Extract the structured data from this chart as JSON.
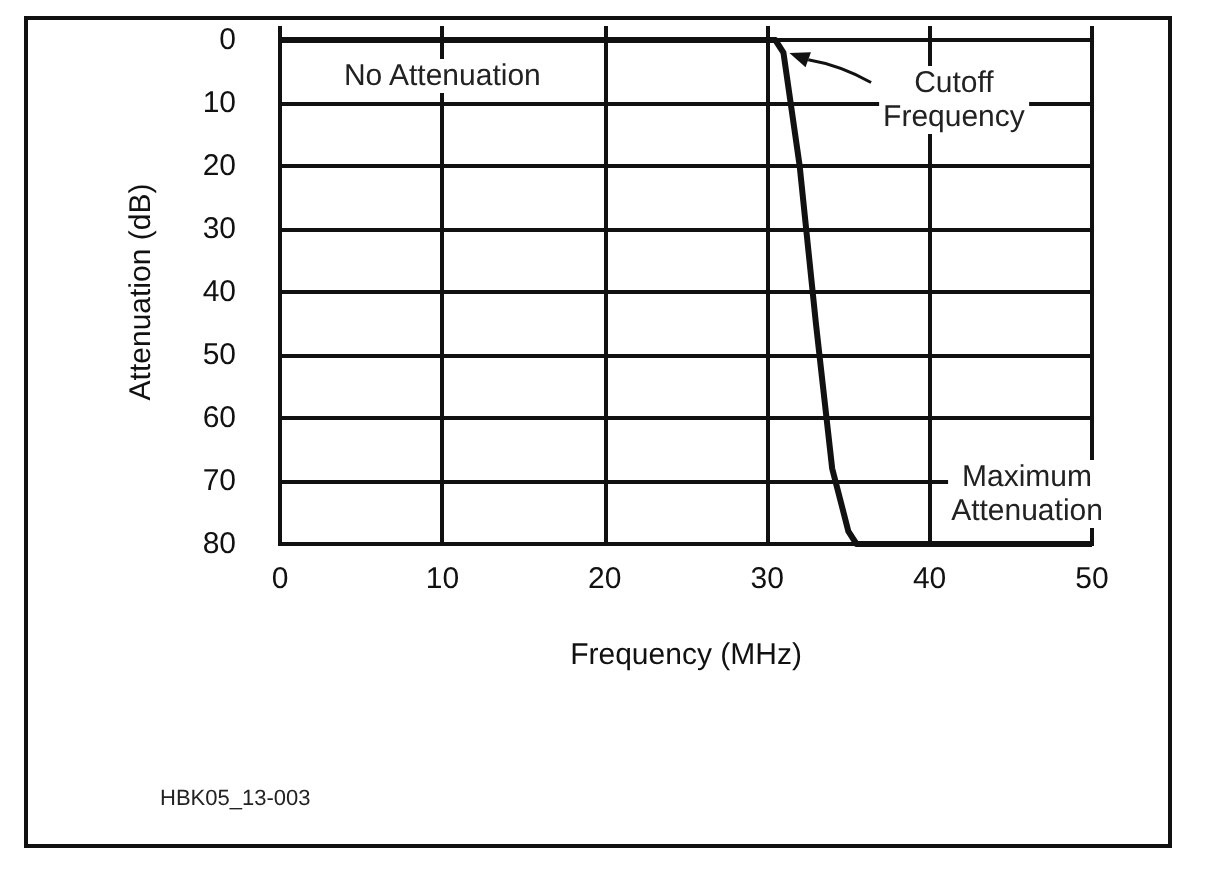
{
  "chart_data": {
    "type": "line",
    "xlabel": "Frequency (MHz)",
    "ylabel": "Attenuation (dB)",
    "x": [
      0,
      30,
      30.5,
      31,
      32,
      33,
      34,
      35,
      35.5,
      36,
      50
    ],
    "series": [
      {
        "color": "#111111",
        "values": [
          0,
          0,
          0,
          2,
          20,
          45,
          68,
          78,
          80,
          80,
          80
        ]
      }
    ],
    "xlim": [
      0,
      50
    ],
    "xticks": [
      0,
      10,
      20,
      30,
      40,
      50
    ],
    "ylim": [
      80,
      0
    ],
    "yticks": [
      0,
      10,
      20,
      30,
      40,
      50,
      60,
      70,
      80
    ],
    "grid": true,
    "marker": "none",
    "line_style": "solid",
    "annotations": [
      "No Attenuation",
      "Cutoff Frequency",
      "Maximum Attenuation",
      "HBK05_13-003"
    ]
  }
}
